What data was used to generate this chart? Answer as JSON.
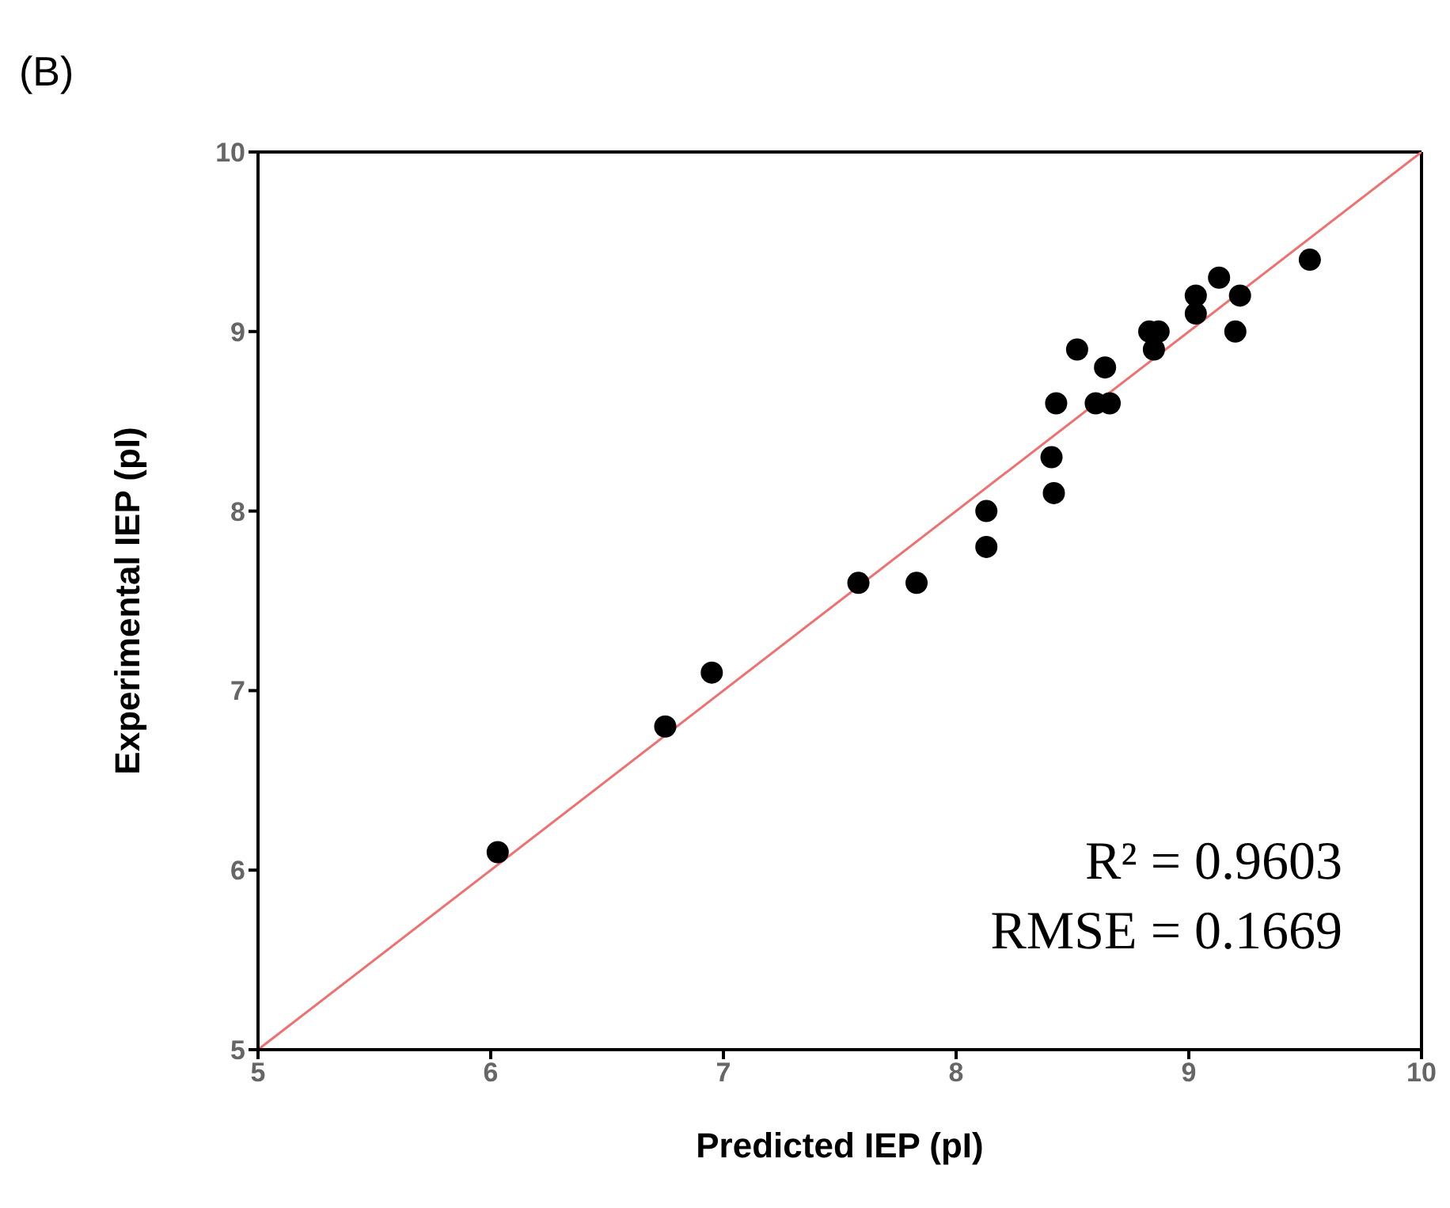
{
  "chart_data": {
    "type": "scatter",
    "xlabel": "Predicted IEP (pI)",
    "ylabel": "Experimental IEP (pI)",
    "annotations": [
      "(B)",
      "R² = 0.9603",
      "RMSE = 0.1669"
    ],
    "xlim": [
      5,
      10
    ],
    "ylim": [
      5,
      10
    ],
    "xticks": [
      5,
      6,
      7,
      8,
      9,
      10
    ],
    "yticks": [
      5,
      6,
      7,
      8,
      9,
      10
    ],
    "grid": false,
    "legend": false,
    "marker": "circle",
    "series": [
      {
        "color": "#000000",
        "x": [
          6.03,
          6.75,
          6.95,
          7.58,
          7.83,
          8.13,
          8.13,
          8.41,
          8.42,
          8.43,
          8.52,
          8.64,
          8.6,
          8.66,
          8.83,
          8.87,
          8.85,
          9.03,
          9.03,
          9.13,
          9.22,
          9.2,
          9.52
        ],
        "values": [
          6.1,
          6.8,
          7.1,
          7.6,
          7.6,
          7.8,
          8.0,
          8.3,
          8.1,
          8.6,
          8.9,
          8.8,
          8.6,
          8.6,
          9.0,
          9.0,
          8.9,
          9.2,
          9.1,
          9.3,
          9.2,
          9.0,
          9.4
        ]
      },
      {
        "type": "line",
        "color": "#f07070",
        "line_style": "solid",
        "marker": "none",
        "x": [
          5,
          10
        ],
        "values": [
          5,
          10
        ]
      }
    ]
  }
}
